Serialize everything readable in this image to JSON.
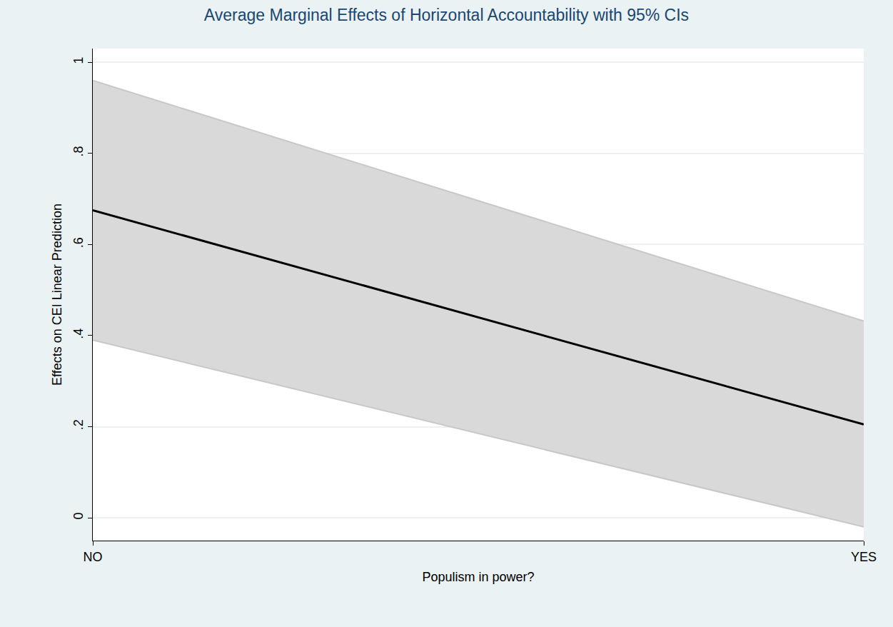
{
  "chart_data": {
    "type": "line",
    "title": "Average Marginal Effects of Horizontal Accountability with 95% CIs",
    "x_label": "Populism in power?",
    "y_label": "Effects on CEI Linear Prediction",
    "categories": [
      "NO",
      "YES"
    ],
    "values": [
      0.675,
      0.205
    ],
    "ci_lower": [
      0.39,
      -0.02
    ],
    "ci_upper": [
      0.96,
      0.432
    ],
    "color": "#000000",
    "ci_color": "#d9d9d9",
    "ylim": [
      -0.05,
      1.03
    ],
    "yticks": [
      0,
      {
        "value": 0.2,
        "label": ".2"
      },
      {
        "value": 0.4,
        "label": ".4"
      },
      {
        "value": 0.6,
        "label": ".6"
      },
      {
        "value": 0.8,
        "label": ".8"
      },
      1
    ],
    "grid": true
  }
}
